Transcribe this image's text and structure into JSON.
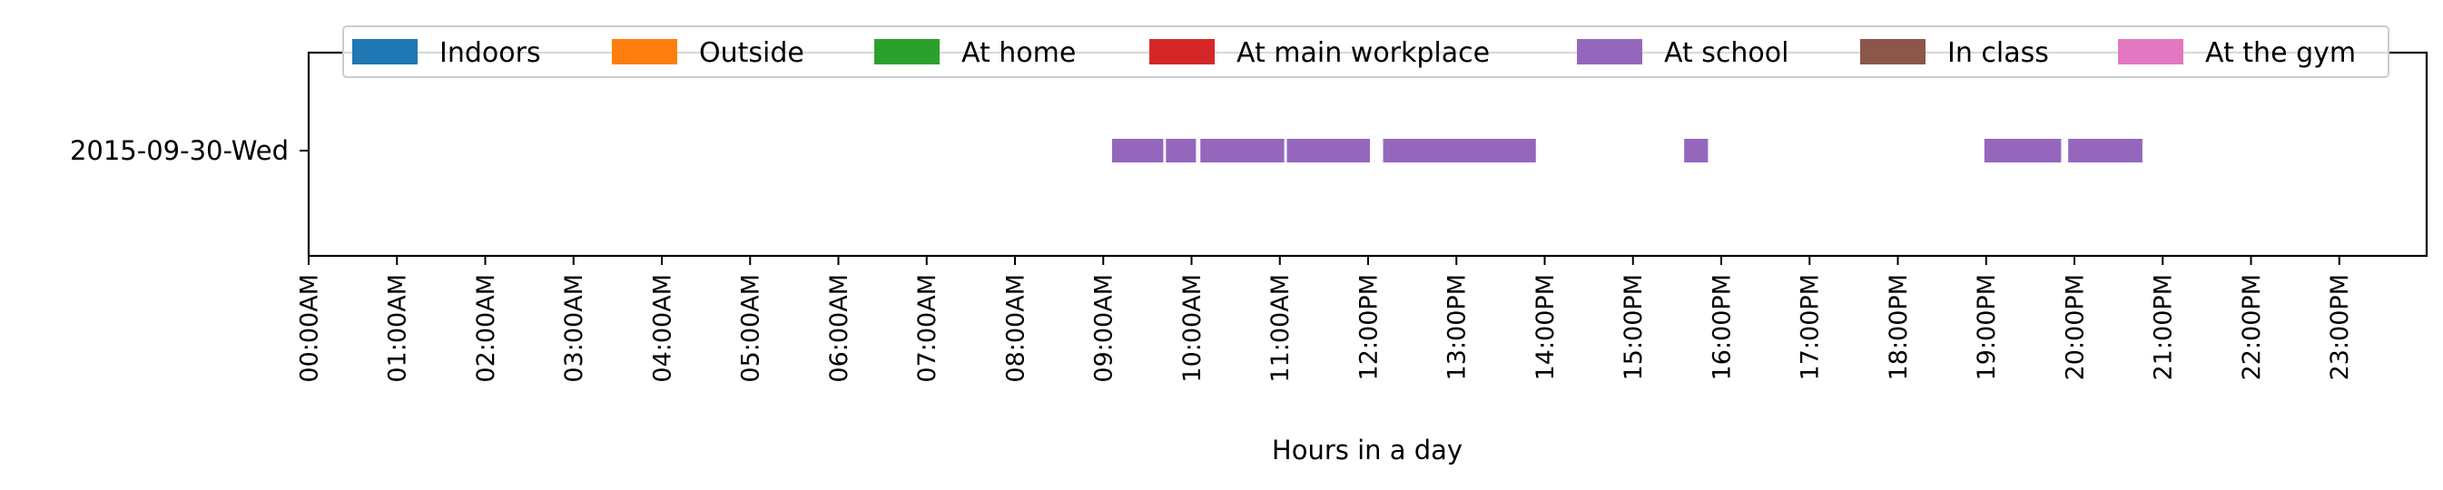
{
  "chart_data": {
    "type": "timeline",
    "title": "",
    "xlabel": "Hours in a day",
    "ylabel": "",
    "xlim": [
      0,
      24
    ],
    "x_ticks": [
      "00:00AM",
      "01:00AM",
      "02:00AM",
      "03:00AM",
      "04:00AM",
      "05:00AM",
      "06:00AM",
      "07:00AM",
      "08:00AM",
      "09:00AM",
      "10:00AM",
      "11:00AM",
      "12:00PM",
      "13:00PM",
      "14:00PM",
      "15:00PM",
      "16:00PM",
      "17:00PM",
      "18:00PM",
      "19:00PM",
      "20:00PM",
      "21:00PM",
      "22:00PM",
      "23:00PM"
    ],
    "rows": [
      "2015-09-30-Wed"
    ],
    "legend_position": "top",
    "legend": [
      {
        "name": "Indoors",
        "color": "#1f77b4"
      },
      {
        "name": "Outside",
        "color": "#ff7f0e"
      },
      {
        "name": "At home",
        "color": "#2ca02c"
      },
      {
        "name": "At main workplace",
        "color": "#d62728"
      },
      {
        "name": "At school",
        "color": "#9467bd"
      },
      {
        "name": "In class",
        "color": "#8c564b"
      },
      {
        "name": "At the gym",
        "color": "#e377c2"
      }
    ],
    "series": [
      {
        "name": "At school",
        "color": "#9467bd",
        "row": "2015-09-30-Wed",
        "intervals": [
          [
            9.1,
            9.68
          ],
          [
            9.71,
            10.05
          ],
          [
            10.1,
            11.05
          ],
          [
            11.08,
            12.02
          ],
          [
            12.17,
            13.9
          ],
          [
            15.58,
            15.85
          ],
          [
            18.98,
            19.85
          ],
          [
            19.93,
            20.77
          ]
        ]
      }
    ]
  }
}
